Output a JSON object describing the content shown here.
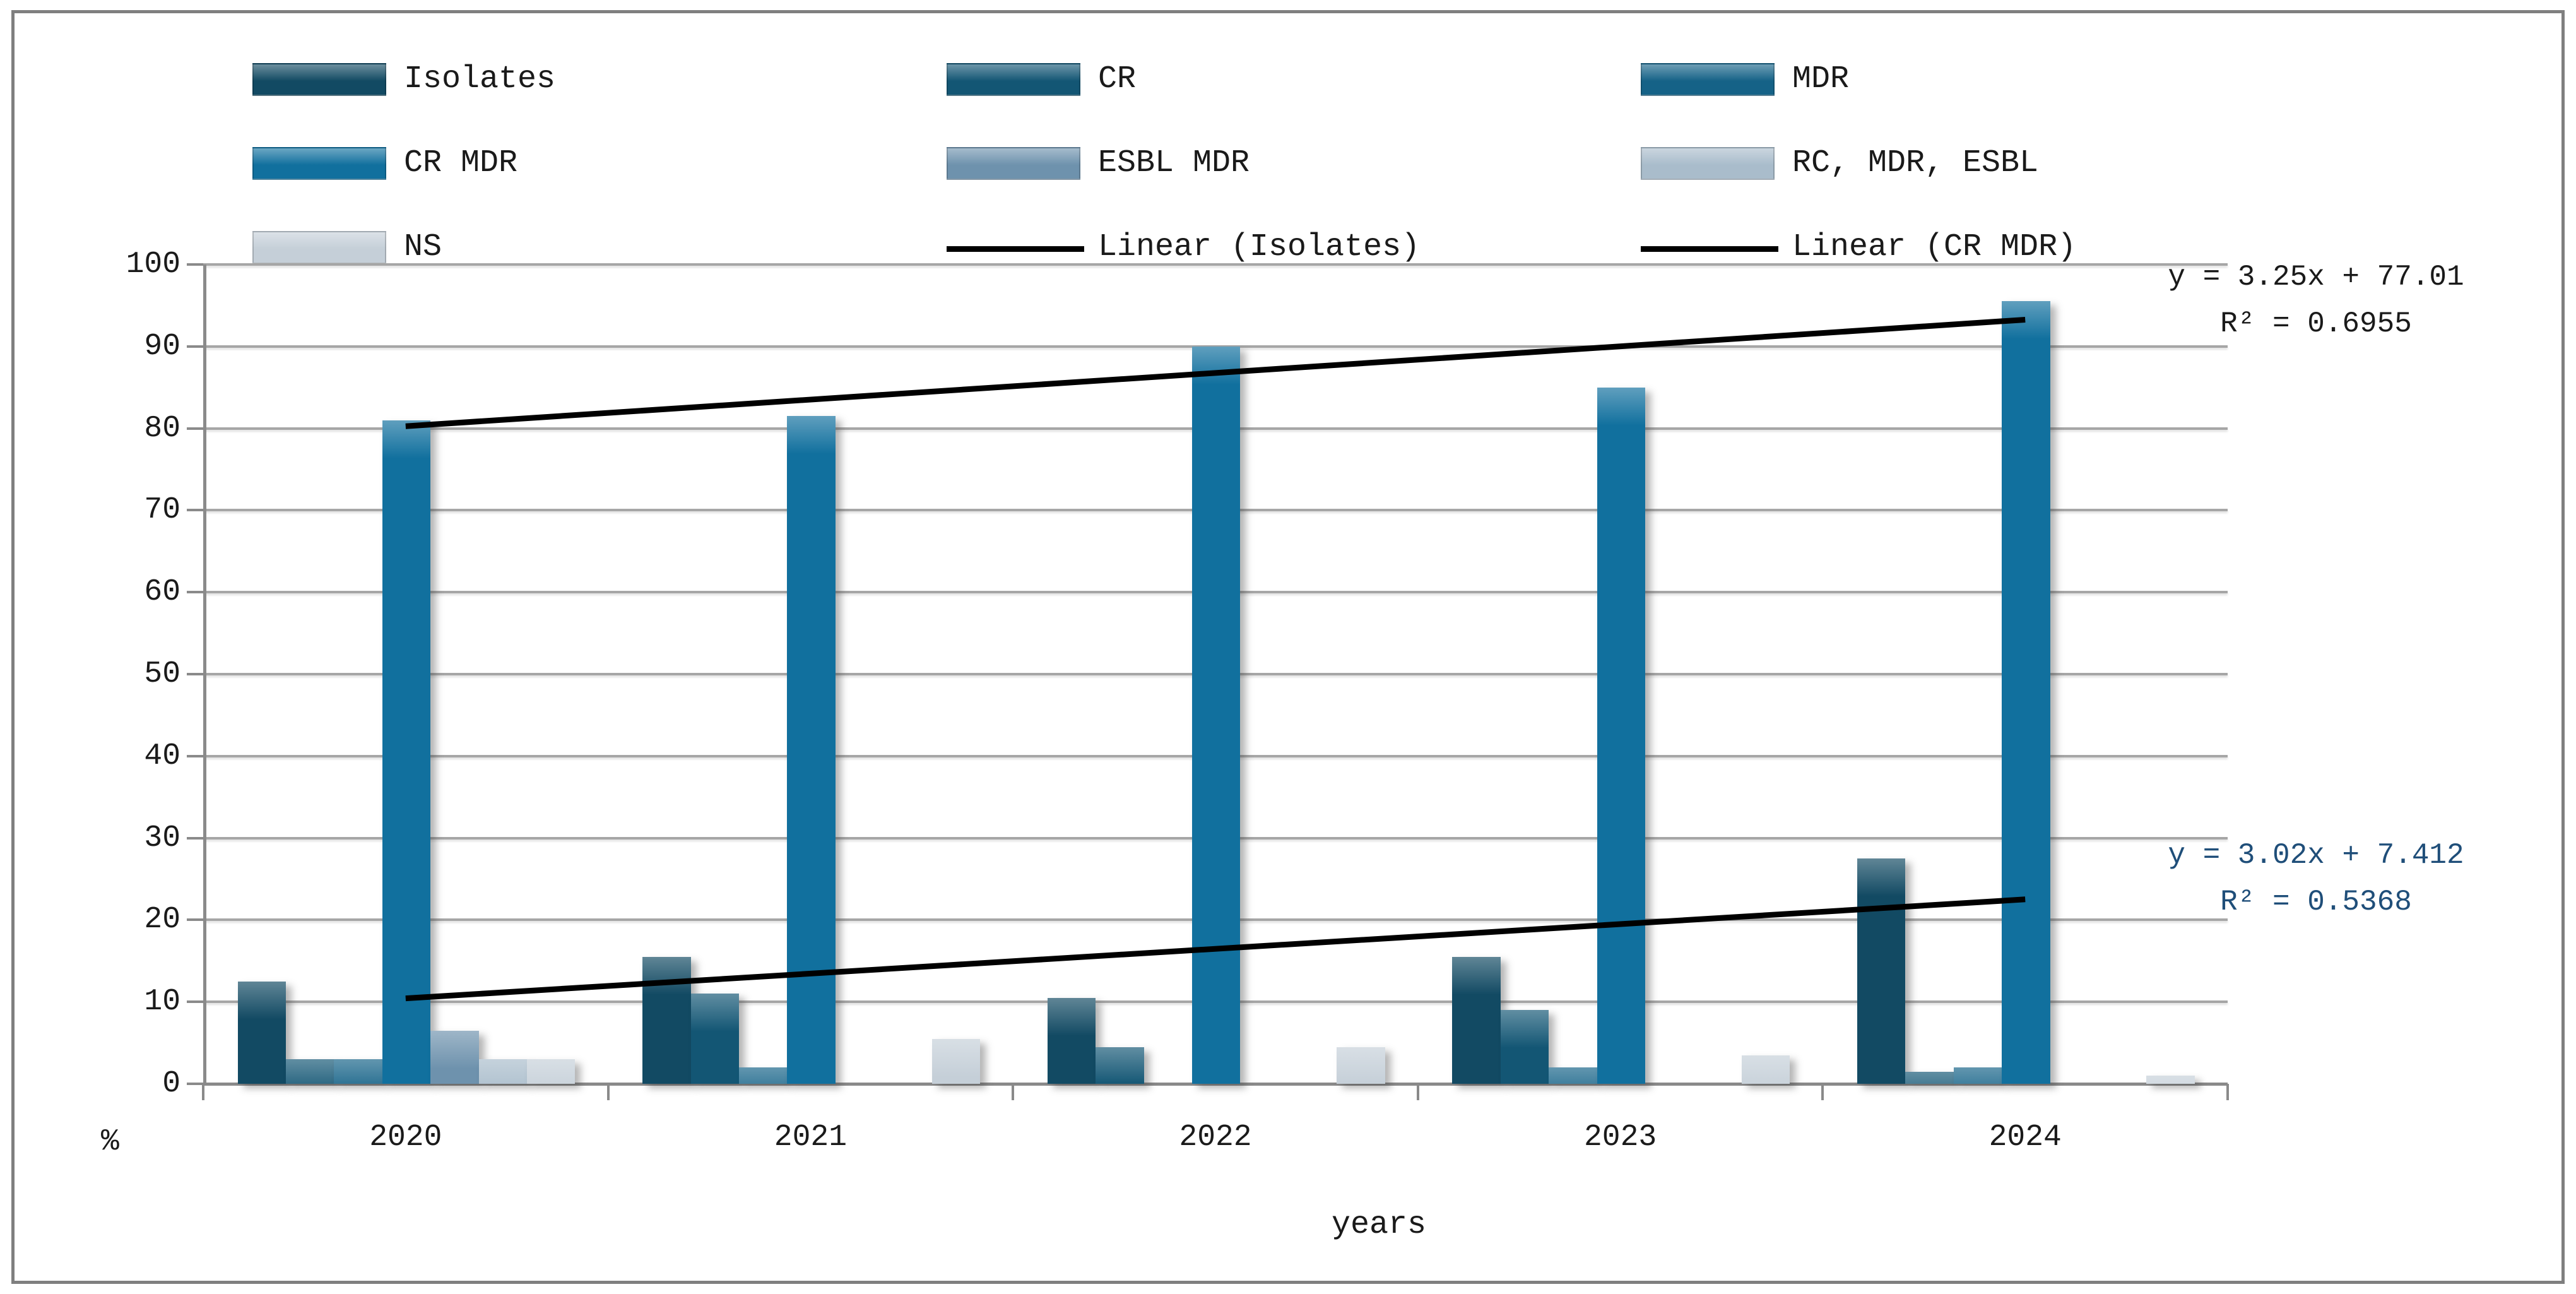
{
  "figure": {
    "background": "#ffffff",
    "border_color": "#7f7f7f",
    "gridline_color": "#a6a6a6",
    "axis_color": "#8a8a8a"
  },
  "legend": {
    "items": [
      {
        "label": "Isolates",
        "type": "swatch",
        "color": "#124a63"
      },
      {
        "label": "CR",
        "type": "swatch",
        "color": "#135674"
      },
      {
        "label": "MDR",
        "type": "swatch",
        "color": "#156287"
      },
      {
        "label": "CR MDR",
        "type": "swatch",
        "color": "#11709e"
      },
      {
        "label": "ESBL MDR",
        "type": "swatch",
        "color": "#6e92ad"
      },
      {
        "label": "RC, MDR, ESBL",
        "type": "swatch",
        "color": "#a9bccb"
      },
      {
        "label": "NS",
        "type": "swatch",
        "color": "#c5cfd8"
      },
      {
        "label": "Linear (Isolates)",
        "type": "line",
        "color": "#000000"
      },
      {
        "label": "Linear (CR MDR)",
        "type": "line",
        "color": "#000000"
      }
    ]
  },
  "axes": {
    "y_ticks": [
      "100",
      "90",
      "80",
      "70",
      "60",
      "50",
      "40",
      "30",
      "20",
      "10",
      "0"
    ],
    "y_unit_label": "%",
    "x_label": "years",
    "x_categories": [
      "2020",
      "2021",
      "2022",
      "2023",
      "2024"
    ]
  },
  "annotations": {
    "cr_mdr": {
      "equation": "y = 3.25x + 77.01",
      "r2": "R² = 0.6955",
      "color": "#1a1a1a"
    },
    "isolates": {
      "equation": "y = 3.02x + 7.412",
      "r2": "R² = 0.5368",
      "color": "#1f4e79"
    }
  },
  "chart_data": {
    "type": "bar",
    "title": "",
    "xlabel": "years",
    "ylabel": "%",
    "ylim": [
      0,
      100
    ],
    "y_step": 10,
    "grid": true,
    "legend_position": "top",
    "categories": [
      "2020",
      "2021",
      "2022",
      "2023",
      "2024"
    ],
    "series": [
      {
        "name": "Isolates",
        "color": "#124a63",
        "values": [
          12.5,
          15.5,
          10.5,
          15.5,
          27.5
        ]
      },
      {
        "name": "CR",
        "color": "#135674",
        "values": [
          3,
          11,
          4.5,
          9,
          1.5
        ]
      },
      {
        "name": "MDR",
        "color": "#156287",
        "values": [
          3,
          2,
          0,
          2,
          2
        ]
      },
      {
        "name": "CR MDR",
        "color": "#11709e",
        "values": [
          81,
          81.5,
          90,
          85,
          95.5
        ]
      },
      {
        "name": "ESBL MDR",
        "color": "#6e92ad",
        "values": [
          6.5,
          0,
          0,
          0,
          0
        ]
      },
      {
        "name": "RC, MDR, ESBL",
        "color": "#a9bccb",
        "values": [
          3,
          0,
          0,
          0,
          0
        ]
      },
      {
        "name": "NS",
        "color": "#c5cfd8",
        "values": [
          3,
          5.5,
          4.5,
          3.5,
          1
        ]
      }
    ],
    "trendlines": [
      {
        "name": "Linear (CR MDR)",
        "slope": 3.25,
        "intercept": 77.01,
        "r2": 0.6955,
        "color": "#000000"
      },
      {
        "name": "Linear (Isolates)",
        "slope": 3.02,
        "intercept": 7.412,
        "r2": 0.5368,
        "color": "#000000"
      }
    ]
  }
}
